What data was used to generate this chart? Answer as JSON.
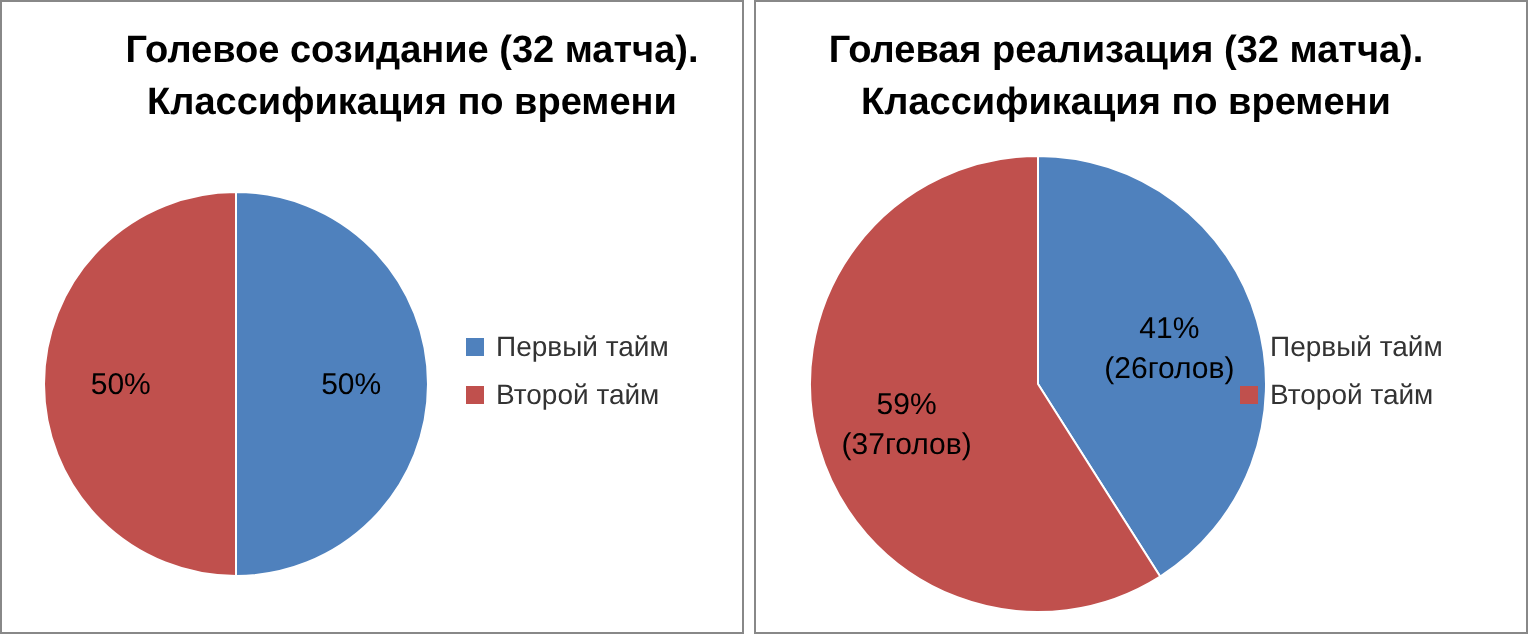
{
  "chart_data": [
    {
      "type": "pie",
      "title": "Голевое созидание (32 матча).\nКлассификация по времени",
      "categories": [
        "Первый тайм",
        "Второй тайм"
      ],
      "values": [
        50,
        50
      ],
      "colors": [
        "#4f81bd",
        "#c0504d"
      ],
      "value_labels": [
        "50%",
        "50%"
      ],
      "legend": "right"
    },
    {
      "type": "pie",
      "title": "Голевая реализация (32 матча).\nКлассификация по времени",
      "categories": [
        "Первый тайм",
        "Второй тайм"
      ],
      "values": [
        41,
        59
      ],
      "colors": [
        "#4f81bd",
        "#c0504d"
      ],
      "value_labels": [
        "41%\n(26голов)",
        "59%\n(37голов)"
      ],
      "legend": "right"
    }
  ]
}
